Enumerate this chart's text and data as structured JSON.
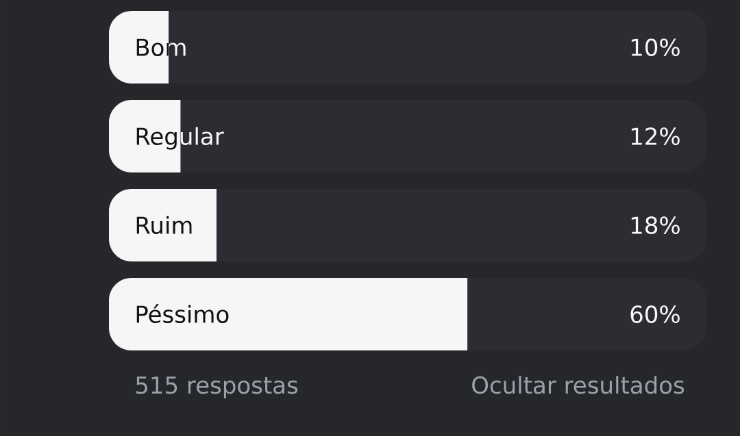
{
  "chart_data": {
    "type": "bar",
    "orientation": "horizontal",
    "categories": [
      "Bom",
      "Regular",
      "Ruim",
      "Péssimo"
    ],
    "values": [
      10,
      12,
      18,
      60
    ],
    "value_labels": [
      "10%",
      "12%",
      "18%",
      "60%"
    ],
    "color": "#f5f7f7",
    "xlim": [
      0,
      100
    ],
    "annotations": [
      "515 respostas",
      "Ocultar resultados"
    ]
  }
}
